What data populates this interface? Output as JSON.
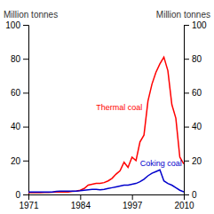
{
  "chart_data": {
    "type": "line",
    "ylabel": "Million tonnes",
    "y2label": "Million tonnes",
    "x": [
      1971,
      1972,
      1973,
      1974,
      1975,
      1976,
      1977,
      1978,
      1979,
      1980,
      1981,
      1982,
      1983,
      1984,
      1985,
      1986,
      1987,
      1988,
      1989,
      1990,
      1991,
      1992,
      1993,
      1994,
      1995,
      1996,
      1997,
      1998,
      1999,
      2000,
      2001,
      2002,
      2003,
      2004,
      2005,
      2006,
      2007,
      2008,
      2009,
      2010
    ],
    "series": [
      {
        "color": "#ff0000",
        "values": [
          1.0,
          1.0,
          1.0,
          1.0,
          1.2,
          1.2,
          1.3,
          1.5,
          1.5,
          1.5,
          1.5,
          1.8,
          2.0,
          2.5,
          3.5,
          5.5,
          6.0,
          6.5,
          6.5,
          7.0,
          8.0,
          9.5,
          12.0,
          14.0,
          19.0,
          16.0,
          22.0,
          20.0,
          31.0,
          35.0,
          55.0,
          65.0,
          72.0,
          77.0,
          81.0,
          73.0,
          53.0,
          45.0,
          22.0,
          18.0
        ]
      },
      {
        "color": "#0000cc",
        "values": [
          1.5,
          1.5,
          1.5,
          1.5,
          1.5,
          1.5,
          1.5,
          1.8,
          2.0,
          2.0,
          2.0,
          2.0,
          2.0,
          2.2,
          2.5,
          2.8,
          3.0,
          3.0,
          2.8,
          3.0,
          3.5,
          4.0,
          4.5,
          5.0,
          5.5,
          5.5,
          6.0,
          6.5,
          7.5,
          9.0,
          11.0,
          12.5,
          13.5,
          14.5,
          8.0,
          6.5,
          5.5,
          4.0,
          2.5,
          1.5
        ]
      }
    ],
    "annotations": [
      {
        "text": "Thermal coal",
        "x": 1988,
        "y": 50,
        "color": "#ff0000"
      },
      {
        "text": "Coking coal",
        "x": 1999,
        "y": 17,
        "color": "#0000cc"
      }
    ],
    "xlim": [
      1971,
      2010
    ],
    "xticks": [
      1971,
      1984,
      1997,
      2010
    ],
    "ylim": [
      0,
      100
    ],
    "yticks": [
      0,
      20,
      40,
      60,
      80,
      100
    ],
    "y2lim": [
      0,
      100
    ],
    "y2ticks": [
      0,
      20,
      40,
      60,
      80,
      100
    ]
  }
}
